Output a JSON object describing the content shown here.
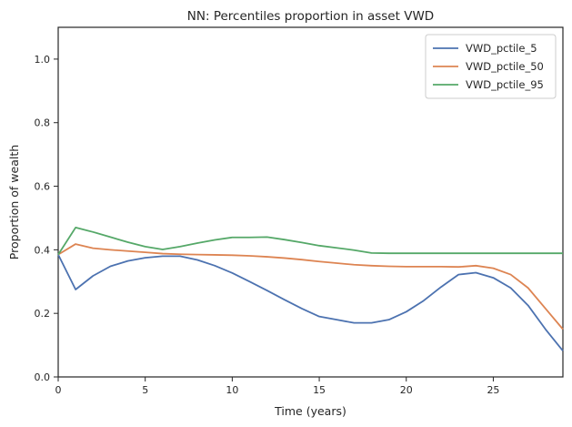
{
  "chart_data": {
    "type": "line",
    "title": "NN: Percentiles proportion in asset VWD",
    "xlabel": "Time (years)",
    "ylabel": "Proportion of wealth",
    "xlim": [
      0,
      29
    ],
    "ylim": [
      0.0,
      1.1
    ],
    "xticks": [
      0,
      5,
      10,
      15,
      20,
      25
    ],
    "yticks": [
      0.0,
      0.2,
      0.4,
      0.6,
      0.8,
      1.0
    ],
    "xtick_labels": [
      "0",
      "5",
      "10",
      "15",
      "20",
      "25"
    ],
    "ytick_labels": [
      "0.0",
      "0.2",
      "0.4",
      "0.6",
      "0.8",
      "1.0"
    ],
    "grid": false,
    "legend_position": "top-right",
    "x": [
      0,
      1,
      2,
      3,
      4,
      5,
      6,
      7,
      8,
      9,
      10,
      11,
      12,
      13,
      14,
      15,
      16,
      17,
      18,
      19,
      20,
      21,
      22,
      23,
      24,
      25,
      26,
      27,
      28,
      29
    ],
    "series": [
      {
        "name": "VWD_pctile_5",
        "color": "#4c72b0",
        "values": [
          0.385,
          0.275,
          0.318,
          0.348,
          0.365,
          0.375,
          0.38,
          0.38,
          0.368,
          0.35,
          0.327,
          0.3,
          0.272,
          0.243,
          0.215,
          0.19,
          0.18,
          0.17,
          0.17,
          0.18,
          0.205,
          0.24,
          0.283,
          0.322,
          0.328,
          0.312,
          0.28,
          0.225,
          0.15,
          0.082
        ]
      },
      {
        "name": "VWD_pctile_50",
        "color": "#dd8452",
        "values": [
          0.385,
          0.418,
          0.405,
          0.4,
          0.396,
          0.392,
          0.388,
          0.386,
          0.385,
          0.384,
          0.383,
          0.381,
          0.378,
          0.374,
          0.369,
          0.363,
          0.358,
          0.353,
          0.35,
          0.348,
          0.347,
          0.347,
          0.347,
          0.346,
          0.35,
          0.342,
          0.322,
          0.28,
          0.215,
          0.15
        ]
      },
      {
        "name": "VWD_pctile_95",
        "color": "#55a868",
        "values": [
          0.385,
          0.47,
          0.456,
          0.44,
          0.424,
          0.41,
          0.401,
          0.41,
          0.421,
          0.431,
          0.439,
          0.439,
          0.44,
          0.432,
          0.423,
          0.413,
          0.406,
          0.399,
          0.39,
          0.389,
          0.389,
          0.389,
          0.389,
          0.389,
          0.389,
          0.389,
          0.389,
          0.389,
          0.389,
          0.389
        ]
      }
    ]
  }
}
